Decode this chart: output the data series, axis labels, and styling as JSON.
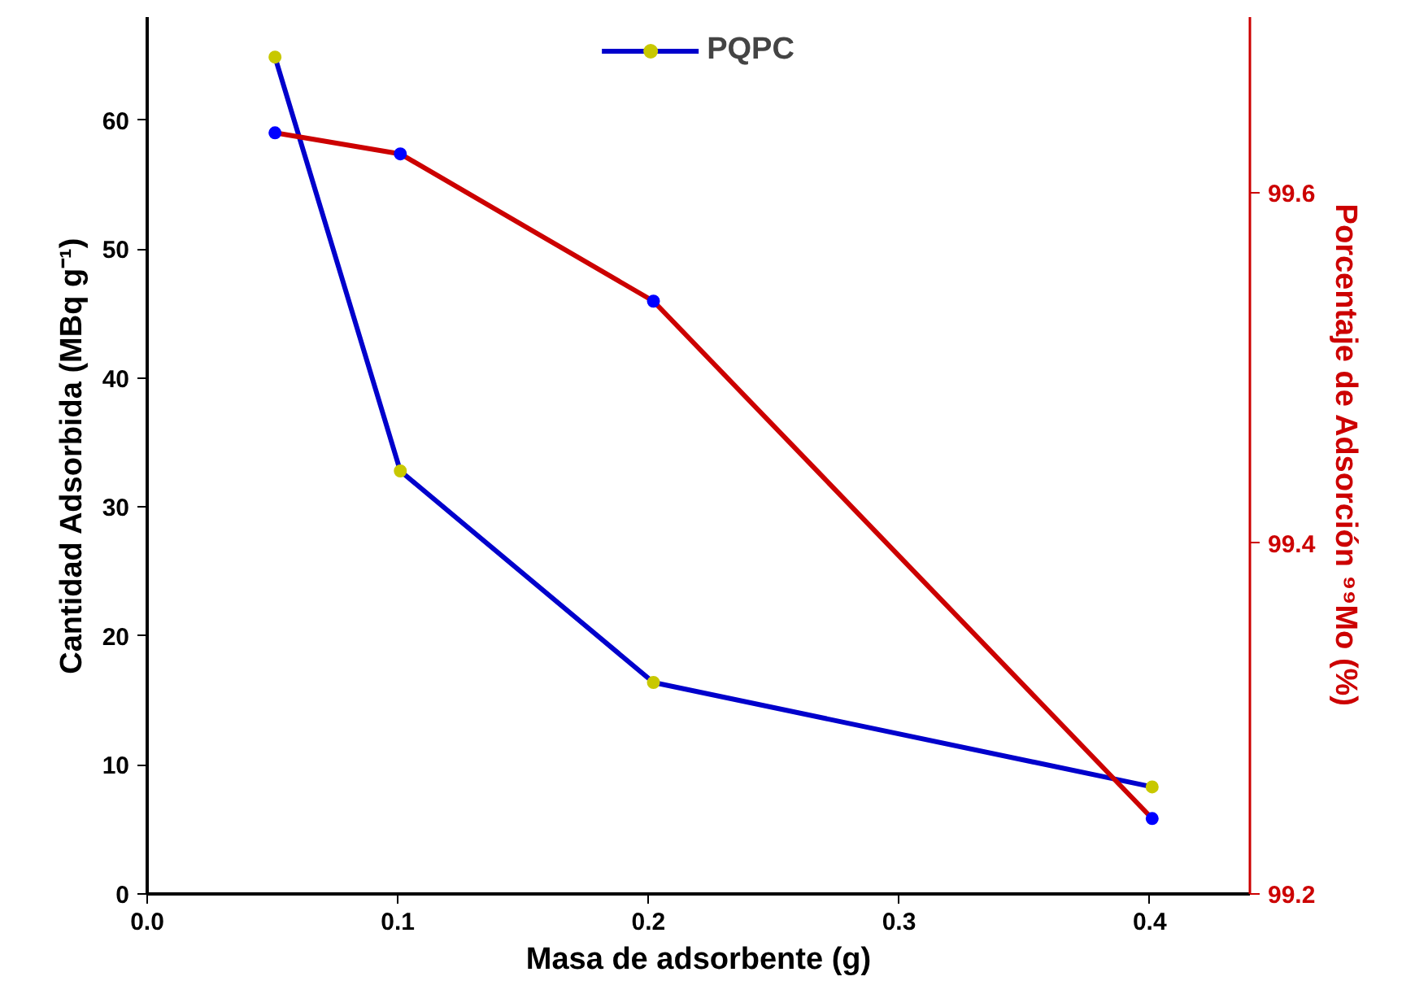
{
  "chart_data": {
    "type": "line",
    "xlabel": "Masa de adsorbente (g)",
    "ylabel": "Cantidad Adsorbida (MBq g⁻¹)",
    "y2label": "Porcentaje de Adsorción ⁹⁹Mo (%)",
    "x": [
      0.051,
      0.101,
      0.202,
      0.401
    ],
    "series": [
      {
        "name": "PQPC",
        "color": "#0000cc",
        "colors": [
          "#c8c800",
          "#c8c800",
          "#c8c800",
          "#c8c800"
        ],
        "values": [
          64.9,
          32.8,
          16.4,
          8.3
        ]
      },
      {
        "color": "#cc0000",
        "colors": [
          "#0000ff",
          "#0000ff",
          "#0000ff",
          "#0000ff"
        ],
        "values": [
          99.634,
          99.622,
          99.538,
          99.243
        ],
        "axis": "y2"
      }
    ],
    "xlim": [
      0,
      0.44
    ],
    "xticks": [
      {
        "value": 0,
        "label": "0.0"
      },
      0.1,
      0.2,
      0.3,
      0.4
    ],
    "ylim": [
      0,
      68
    ],
    "yticks": [
      0,
      10,
      20,
      30,
      40,
      50,
      60
    ],
    "y2lim": [
      99.2,
      99.7
    ],
    "y2ticks": [
      99.2,
      99.4,
      99.6
    ],
    "grid": false,
    "legend": "top",
    "marker": "circle",
    "line_style": "solid"
  }
}
